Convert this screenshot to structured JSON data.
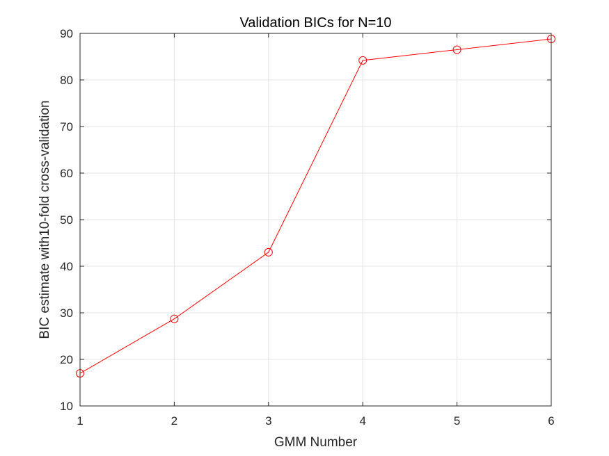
{
  "chart_data": {
    "type": "line",
    "title": "Validation BICs for N=10",
    "xlabel": "GMM Number",
    "ylabel": "BIC estimate with10-fold cross-validation",
    "xlim": [
      1,
      6
    ],
    "ylim": [
      10,
      90
    ],
    "xticks": [
      "1",
      "2",
      "3",
      "4",
      "5",
      "6"
    ],
    "yticks": [
      "10",
      "20",
      "30",
      "40",
      "50",
      "60",
      "70",
      "80",
      "90"
    ],
    "grid": true,
    "series": [
      {
        "x": [
          1,
          2,
          3,
          4,
          5,
          6
        ],
        "y": [
          17.0,
          28.7,
          43.0,
          84.2,
          86.5,
          88.8
        ],
        "color": "#ff0000",
        "marker": "circle"
      }
    ]
  }
}
